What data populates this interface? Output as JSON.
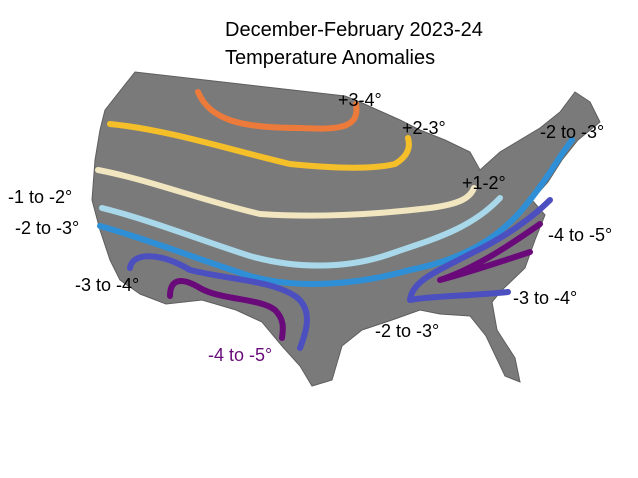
{
  "title": {
    "line1": "December-February 2023-24",
    "line2": "Temperature Anomalies"
  },
  "labels": [
    "+3-4°",
    "+2-3°",
    "+1-2°",
    "-2 to -3°",
    "-1 to -2°",
    "-2 to -3°",
    "-4 to -5°",
    "-3 to -4°",
    "-3 to -4°",
    "-2 to -3°",
    "-4 to -5°"
  ]
}
